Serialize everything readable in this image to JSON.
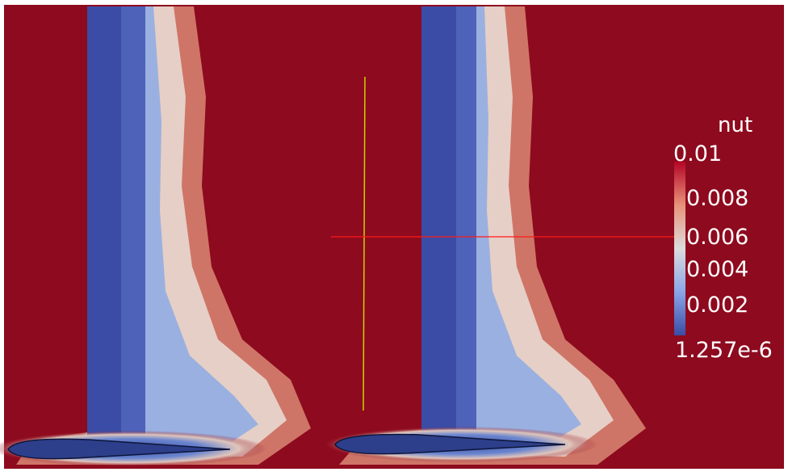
{
  "visualization": {
    "field_name": "nut",
    "colorbar": {
      "max_label": "0.01",
      "min_label": "1.257e-6",
      "tick_labels": [
        "0.008",
        "0.006",
        "0.004",
        "0.002"
      ]
    },
    "colors": {
      "background_field": "#8e0a1e",
      "low_value": "#3a4ca5",
      "high_value": "#8e0a1e",
      "probe_line_vertical": "#c9d400",
      "probe_line_horizontal": "#ff1a1a"
    }
  }
}
